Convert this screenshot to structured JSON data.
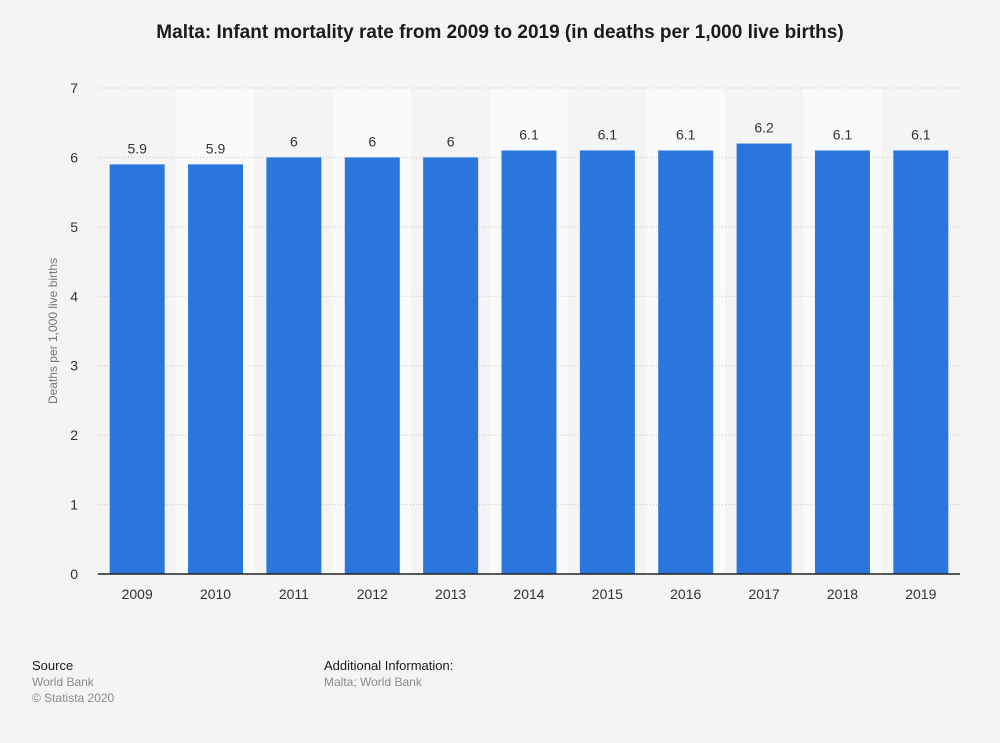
{
  "title": "Malta: Infant mortality rate from 2009 to 2019 (in deaths per 1,000 live births)",
  "chart_data": {
    "type": "bar",
    "categories": [
      "2009",
      "2010",
      "2011",
      "2012",
      "2013",
      "2014",
      "2015",
      "2016",
      "2017",
      "2018",
      "2019"
    ],
    "values": [
      5.9,
      5.9,
      6,
      6,
      6,
      6.1,
      6.1,
      6.1,
      6.2,
      6.1,
      6.1
    ],
    "value_labels": [
      "5.9",
      "5.9",
      "6",
      "6",
      "6",
      "6.1",
      "6.1",
      "6.1",
      "6.2",
      "6.1",
      "6.1"
    ],
    "ylabel": "Deaths per 1,000 live births",
    "xlabel": "",
    "ylim": [
      0,
      7
    ],
    "yticks": [
      0,
      1,
      2,
      3,
      4,
      5,
      6,
      7
    ],
    "grid": true,
    "bar_color": "#2a76dd"
  },
  "footer": {
    "source_heading": "Source",
    "source_lines": [
      "World Bank",
      "© Statista 2020"
    ],
    "additional_heading": "Additional Information:",
    "additional_lines": [
      "Malta; World Bank"
    ]
  }
}
